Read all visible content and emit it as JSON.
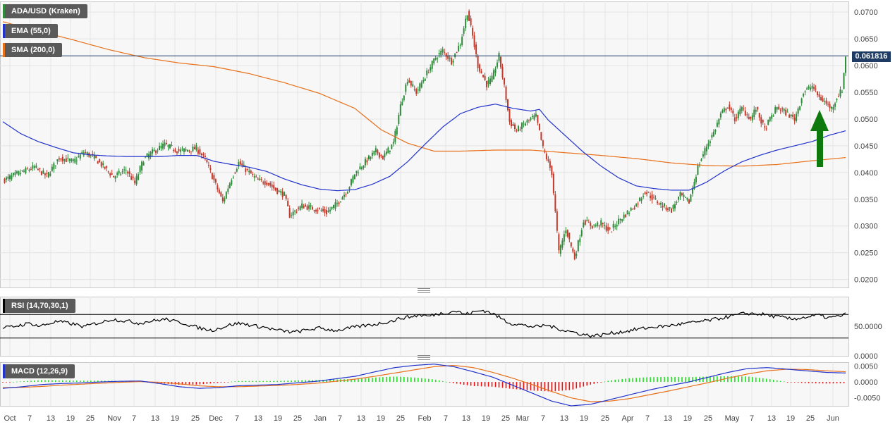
{
  "legend": {
    "pair": "ADA/USD (Kraken)",
    "ema": "EMA (55,0)",
    "sma": "SMA (200,0)",
    "rsi": "RSI (14,70,30,1)",
    "macd": "MACD (12,26,9)"
  },
  "current_price": "0.061816",
  "colors": {
    "up": "#2e8b3a",
    "down": "#c0392b",
    "ema": "#2233cc",
    "sma": "#e8701a",
    "signal_arrow": "#0e7a0e",
    "price_line": "#1f3a63",
    "macd_hist_pos": "#22dd22",
    "macd_hist_neg": "#ee1111"
  },
  "chart_data": [
    {
      "type": "candlestick",
      "title": "ADA/USD (Kraken)",
      "x_ticks": [
        "Oct",
        "7",
        "13",
        "19",
        "25",
        "Nov",
        "7",
        "13",
        "19",
        "25",
        "Dec",
        "7",
        "13",
        "19",
        "25",
        "Jan",
        "7",
        "13",
        "19",
        "25",
        "Feb",
        "7",
        "13",
        "19",
        "25",
        "Mar",
        "7",
        "13",
        "19",
        "25",
        "Apr",
        "7",
        "13",
        "19",
        "25",
        "May",
        "7",
        "13",
        "19",
        "25",
        "Jun"
      ],
      "y_ticks": [
        "0.0700",
        "0.0650",
        "0.0600",
        "0.0550",
        "0.0500",
        "0.0450",
        "0.0400",
        "0.0350",
        "0.0300",
        "0.0250",
        "0.0200"
      ],
      "ylim": [
        0.0185,
        0.072
      ],
      "close_path": [
        [
          0,
          0.0385
        ],
        [
          10,
          0.04
        ],
        [
          18,
          0.041
        ],
        [
          25,
          0.0393
        ],
        [
          32,
          0.0428
        ],
        [
          40,
          0.042
        ],
        [
          46,
          0.0438
        ],
        [
          52,
          0.0428
        ],
        [
          55,
          0.0418
        ],
        [
          63,
          0.0392
        ],
        [
          70,
          0.0405
        ],
        [
          75,
          0.038
        ],
        [
          80,
          0.0425
        ],
        [
          85,
          0.0438
        ],
        [
          92,
          0.0452
        ],
        [
          100,
          0.044
        ],
        [
          110,
          0.0445
        ],
        [
          115,
          0.0425
        ],
        [
          120,
          0.0385
        ],
        [
          125,
          0.0345
        ],
        [
          130,
          0.039
        ],
        [
          134,
          0.0418
        ],
        [
          140,
          0.04
        ],
        [
          145,
          0.0385
        ],
        [
          150,
          0.0382
        ],
        [
          155,
          0.0368
        ],
        [
          160,
          0.0358
        ],
        [
          163,
          0.032
        ],
        [
          170,
          0.0338
        ],
        [
          180,
          0.033
        ],
        [
          184,
          0.0325
        ],
        [
          190,
          0.0342
        ],
        [
          196,
          0.0368
        ],
        [
          200,
          0.0398
        ],
        [
          206,
          0.042
        ],
        [
          212,
          0.044
        ],
        [
          216,
          0.0428
        ],
        [
          222,
          0.0455
        ],
        [
          226,
          0.0525
        ],
        [
          230,
          0.0575
        ],
        [
          235,
          0.055
        ],
        [
          240,
          0.058
        ],
        [
          246,
          0.0615
        ],
        [
          250,
          0.0628
        ],
        [
          255,
          0.0608
        ],
        [
          260,
          0.0642
        ],
        [
          264,
          0.07
        ],
        [
          267,
          0.0655
        ],
        [
          270,
          0.06
        ],
        [
          275,
          0.0565
        ],
        [
          278,
          0.0575
        ],
        [
          282,
          0.0618
        ],
        [
          285,
          0.056
        ],
        [
          288,
          0.0495
        ],
        [
          292,
          0.0478
        ],
        [
          296,
          0.049
        ],
        [
          300,
          0.05
        ],
        [
          303,
          0.0505
        ],
        [
          307,
          0.0445
        ],
        [
          312,
          0.04
        ],
        [
          316,
          0.025
        ],
        [
          320,
          0.0295
        ],
        [
          325,
          0.024
        ],
        [
          330,
          0.031
        ],
        [
          335,
          0.03
        ],
        [
          340,
          0.0305
        ],
        [
          345,
          0.029
        ],
        [
          350,
          0.031
        ],
        [
          355,
          0.0325
        ],
        [
          360,
          0.034
        ],
        [
          365,
          0.0365
        ],
        [
          370,
          0.035
        ],
        [
          375,
          0.0338
        ],
        [
          380,
          0.033
        ],
        [
          385,
          0.0358
        ],
        [
          390,
          0.0345
        ],
        [
          395,
          0.041
        ],
        [
          400,
          0.045
        ],
        [
          404,
          0.0475
        ],
        [
          408,
          0.0508
        ],
        [
          412,
          0.0525
        ],
        [
          416,
          0.05
        ],
        [
          420,
          0.052
        ],
        [
          425,
          0.05
        ],
        [
          428,
          0.052
        ],
        [
          433,
          0.048
        ],
        [
          436,
          0.05
        ],
        [
          440,
          0.0522
        ],
        [
          445,
          0.0512
        ],
        [
          450,
          0.05
        ],
        [
          455,
          0.055
        ],
        [
          460,
          0.0562
        ],
        [
          464,
          0.054
        ],
        [
          467,
          0.0532
        ],
        [
          471,
          0.052
        ],
        [
          474,
          0.054
        ],
        [
          477,
          0.0555
        ],
        [
          479,
          0.0618
        ]
      ],
      "ema_55_path": [
        [
          0,
          0.0495
        ],
        [
          10,
          0.0473
        ],
        [
          20,
          0.0458
        ],
        [
          30,
          0.0447
        ],
        [
          40,
          0.0437
        ],
        [
          50,
          0.0433
        ],
        [
          60,
          0.0431
        ],
        [
          70,
          0.043
        ],
        [
          80,
          0.043
        ],
        [
          90,
          0.043
        ],
        [
          100,
          0.0432
        ],
        [
          110,
          0.0432
        ],
        [
          120,
          0.0421
        ],
        [
          130,
          0.0415
        ],
        [
          140,
          0.041
        ],
        [
          150,
          0.0402
        ],
        [
          160,
          0.0388
        ],
        [
          170,
          0.0377
        ],
        [
          180,
          0.0369
        ],
        [
          190,
          0.0366
        ],
        [
          200,
          0.0368
        ],
        [
          210,
          0.0378
        ],
        [
          220,
          0.0393
        ],
        [
          230,
          0.042
        ],
        [
          240,
          0.0453
        ],
        [
          250,
          0.0485
        ],
        [
          260,
          0.051
        ],
        [
          270,
          0.0522
        ],
        [
          280,
          0.0528
        ],
        [
          290,
          0.052
        ],
        [
          300,
          0.0515
        ],
        [
          305,
          0.0518
        ],
        [
          310,
          0.0498
        ],
        [
          320,
          0.0468
        ],
        [
          330,
          0.0438
        ],
        [
          340,
          0.0412
        ],
        [
          350,
          0.039
        ],
        [
          360,
          0.0375
        ],
        [
          370,
          0.037
        ],
        [
          380,
          0.0367
        ],
        [
          390,
          0.0367
        ],
        [
          400,
          0.0382
        ],
        [
          410,
          0.0403
        ],
        [
          420,
          0.042
        ],
        [
          430,
          0.0432
        ],
        [
          440,
          0.0442
        ],
        [
          450,
          0.045
        ],
        [
          460,
          0.0458
        ],
        [
          470,
          0.047
        ],
        [
          479,
          0.0478
        ]
      ],
      "sma_200_path": [
        [
          0,
          0.0682
        ],
        [
          20,
          0.0665
        ],
        [
          40,
          0.0648
        ],
        [
          60,
          0.063
        ],
        [
          80,
          0.0615
        ],
        [
          100,
          0.0605
        ],
        [
          120,
          0.0598
        ],
        [
          140,
          0.0585
        ],
        [
          160,
          0.0568
        ],
        [
          180,
          0.0548
        ],
        [
          200,
          0.052
        ],
        [
          215,
          0.048
        ],
        [
          230,
          0.0455
        ],
        [
          245,
          0.044
        ],
        [
          260,
          0.044
        ],
        [
          280,
          0.0442
        ],
        [
          300,
          0.0442
        ],
        [
          320,
          0.0437
        ],
        [
          340,
          0.0432
        ],
        [
          360,
          0.0426
        ],
        [
          380,
          0.0418
        ],
        [
          400,
          0.0413
        ],
        [
          420,
          0.0412
        ],
        [
          440,
          0.0415
        ],
        [
          460,
          0.0422
        ],
        [
          479,
          0.0428
        ]
      ],
      "annotations": [
        "0.061816"
      ]
    },
    {
      "type": "line",
      "title": "RSI (14,70,30,1)",
      "y_ticks": [
        "50.0000",
        "0.0000"
      ],
      "ylim": [
        0,
        100
      ],
      "reference_levels": [
        70,
        30
      ],
      "series": [
        {
          "values": [
            47,
            49,
            52,
            55,
            50,
            54,
            58,
            56,
            53,
            49,
            54,
            57,
            62,
            60,
            58,
            55,
            58,
            60,
            62,
            58,
            55,
            50,
            46,
            43,
            47,
            52,
            55,
            53,
            50,
            48,
            44,
            42,
            40,
            42,
            45,
            47,
            44,
            43,
            46,
            49,
            51,
            53,
            56,
            59,
            64,
            66,
            69,
            67,
            71,
            73,
            76,
            70,
            74,
            77,
            72,
            63,
            55,
            53,
            50,
            49,
            52,
            47,
            43,
            40,
            36,
            34,
            35,
            38,
            40,
            42,
            45,
            47,
            49,
            50,
            52,
            54,
            56,
            58,
            60,
            63,
            66,
            69,
            72,
            71,
            70,
            67,
            65,
            62,
            64,
            66,
            69,
            64,
            66,
            70
          ]
        }
      ]
    },
    {
      "type": "line",
      "title": "MACD (12,26,9)",
      "y_ticks": [
        "0.0050",
        "0.0000",
        "-0.0050"
      ],
      "ylim": [
        -0.0075,
        0.0062
      ],
      "series": [
        {
          "values": [
            -0.002,
            -0.0015,
            -0.0008,
            -0.0005,
            -0.0003,
            0.0,
            0.0002,
            0.0003,
            -0.0005,
            -0.0015,
            -0.002,
            -0.0018,
            -0.0012,
            -0.001,
            -0.0008,
            -0.0003,
            0.0002,
            0.001,
            0.0018,
            0.0032,
            0.0045,
            0.0052,
            0.0056,
            0.0048,
            0.0032,
            0.0015,
            -0.001,
            -0.0035,
            -0.006,
            -0.0075,
            -0.007,
            -0.0055,
            -0.004,
            -0.0025,
            -0.0012,
            0.0,
            0.0015,
            0.003,
            0.0042,
            0.0045,
            0.004,
            0.0035,
            0.003,
            0.0028
          ]
        },
        {
          "values": [
            -0.0018,
            -0.0017,
            -0.0014,
            -0.001,
            -0.0007,
            -0.0004,
            -0.0001,
            0.0001,
            -0.0001,
            -0.0006,
            -0.0012,
            -0.0015,
            -0.0015,
            -0.0013,
            -0.0011,
            -0.0008,
            -0.0004,
            0.0002,
            0.0009,
            0.0018,
            0.0028,
            0.0038,
            0.0048,
            0.0052,
            0.0045,
            0.003,
            0.0012,
            -0.0008,
            -0.003,
            -0.005,
            -0.0062,
            -0.006,
            -0.0052,
            -0.004,
            -0.0028,
            -0.0015,
            -0.0002,
            0.0012,
            0.0025,
            0.0035,
            0.004,
            0.0039,
            0.0035,
            0.0032
          ]
        },
        {
          "values": [
            -0.0002,
            0.0002,
            0.0006,
            0.0005,
            0.0004,
            0.0004,
            0.0003,
            0.0002,
            -0.0004,
            -0.0009,
            -0.0008,
            -0.0003,
            0.0003,
            0.0003,
            0.0003,
            0.0005,
            0.0006,
            0.0008,
            0.0009,
            0.0014,
            0.0017,
            0.0014,
            0.0008,
            -0.0004,
            -0.0013,
            -0.0015,
            -0.0022,
            -0.0027,
            -0.003,
            -0.0025,
            -0.0008,
            0.0005,
            0.0012,
            0.0015,
            0.0016,
            0.0015,
            0.0017,
            0.0018,
            0.0017,
            0.001,
            0.0,
            -0.0004,
            -0.0005,
            -0.0004
          ]
        }
      ]
    }
  ]
}
